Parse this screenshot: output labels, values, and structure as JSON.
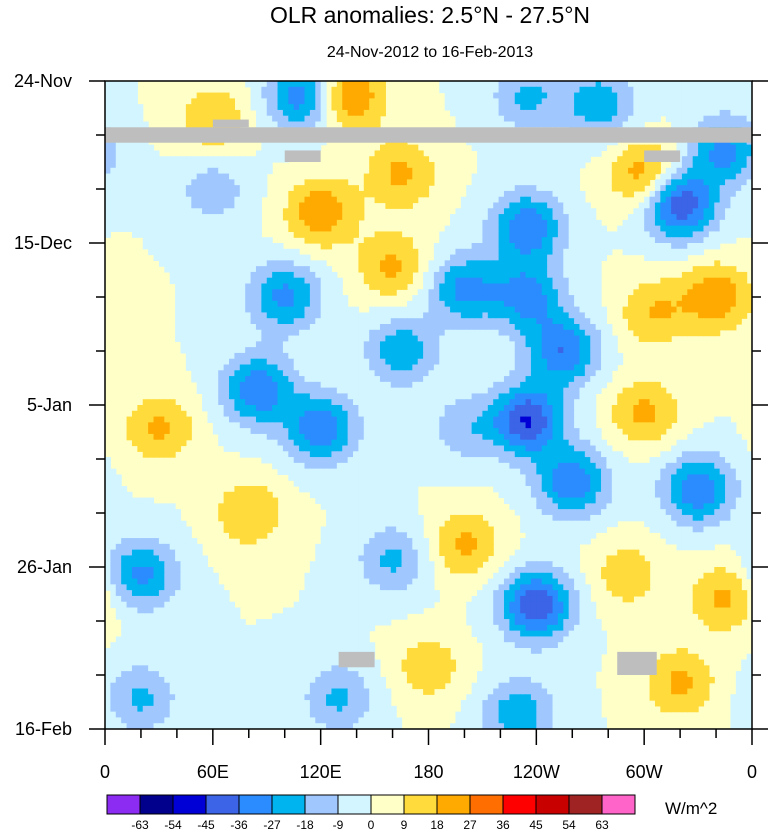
{
  "chart_data": {
    "type": "heatmap",
    "title": "OLR anomalies: 2.5°N - 27.5°N",
    "subtitle": "24-Nov-2012 to 16-Feb-2013",
    "x_tick_labels": [
      "0",
      "60E",
      "120E",
      "180",
      "120W",
      "60W",
      "0"
    ],
    "x_tick_values_deg_east": [
      0,
      60,
      120,
      180,
      240,
      300,
      360
    ],
    "xlim": [
      0,
      360
    ],
    "y_tick_labels": [
      "24-Nov",
      "15-Dec",
      "5-Jan",
      "26-Jan",
      "16-Feb"
    ],
    "y_tick_values_day": [
      0,
      21,
      42,
      63,
      84
    ],
    "ylim": [
      0,
      84
    ],
    "units_label": "W/m^2",
    "colorbar_levels": [
      "-63",
      "-54",
      "-45",
      "-36",
      "-27",
      "-18",
      "-9",
      "0",
      "9",
      "18",
      "27",
      "36",
      "45",
      "54",
      "63"
    ],
    "colorbar_colors": [
      "#8c2cf3",
      "#00008c",
      "#0000d6",
      "#3b64e6",
      "#2a8cff",
      "#00b4f0",
      "#a0c8ff",
      "#d2f5ff",
      "#ffffc8",
      "#ffdc3c",
      "#ffaa00",
      "#ff6e00",
      "#ff0000",
      "#c80000",
      "#a02323",
      "#ff64c8"
    ],
    "missing_color": "#bebebe",
    "missing_data_blocks": [
      {
        "lon": [
          0,
          360
        ],
        "day": [
          6,
          8
        ]
      },
      {
        "lon": [
          60,
          80
        ],
        "day": [
          5,
          6
        ]
      },
      {
        "lon": [
          100,
          120
        ],
        "day": [
          9,
          10.5
        ]
      },
      {
        "lon": [
          300,
          320
        ],
        "day": [
          9,
          10.5
        ]
      },
      {
        "lon": [
          130,
          150
        ],
        "day": [
          74,
          76
        ]
      },
      {
        "lon": [
          285,
          307
        ],
        "day": [
          74,
          77
        ]
      }
    ],
    "anomaly_features": [
      {
        "lon": 110,
        "day": 2,
        "value": -35
      },
      {
        "lon": 135,
        "day": 2,
        "value": 30
      },
      {
        "lon": 235,
        "day": 2,
        "value": -20
      },
      {
        "lon": 275,
        "day": 3,
        "value": -25
      },
      {
        "lon": 60,
        "day": 5,
        "value": 18
      },
      {
        "lon": 345,
        "day": 9,
        "value": -30
      },
      {
        "lon": 165,
        "day": 12,
        "value": 20
      },
      {
        "lon": 120,
        "day": 17,
        "value": 25
      },
      {
        "lon": 60,
        "day": 14,
        "value": -15
      },
      {
        "lon": 320,
        "day": 16,
        "value": -45
      },
      {
        "lon": 300,
        "day": 12,
        "value": 25
      },
      {
        "lon": 235,
        "day": 19,
        "value": -35
      },
      {
        "lon": 200,
        "day": 27,
        "value": -30
      },
      {
        "lon": 235,
        "day": 28,
        "value": -30
      },
      {
        "lon": 100,
        "day": 28,
        "value": -30
      },
      {
        "lon": 255,
        "day": 35,
        "value": -35
      },
      {
        "lon": 160,
        "day": 24,
        "value": 20
      },
      {
        "lon": 165,
        "day": 35,
        "value": -25
      },
      {
        "lon": 305,
        "day": 30,
        "value": 18
      },
      {
        "lon": 340,
        "day": 28,
        "value": 25
      },
      {
        "lon": 85,
        "day": 40,
        "value": -35
      },
      {
        "lon": 120,
        "day": 45,
        "value": -35
      },
      {
        "lon": 235,
        "day": 44,
        "value": -45
      },
      {
        "lon": 300,
        "day": 43,
        "value": 20
      },
      {
        "lon": 200,
        "day": 45,
        "value": -15
      },
      {
        "lon": 260,
        "day": 52,
        "value": -35
      },
      {
        "lon": 330,
        "day": 53,
        "value": -35
      },
      {
        "lon": 30,
        "day": 45,
        "value": 20
      },
      {
        "lon": 20,
        "day": 64,
        "value": -30
      },
      {
        "lon": 240,
        "day": 68,
        "value": -45
      },
      {
        "lon": 160,
        "day": 62,
        "value": -20
      },
      {
        "lon": 200,
        "day": 60,
        "value": 20
      },
      {
        "lon": 345,
        "day": 67,
        "value": 20
      },
      {
        "lon": 290,
        "day": 64,
        "value": 15
      },
      {
        "lon": 80,
        "day": 56,
        "value": 18
      },
      {
        "lon": 130,
        "day": 80,
        "value": -20
      },
      {
        "lon": 230,
        "day": 82,
        "value": -25
      },
      {
        "lon": 20,
        "day": 80,
        "value": -20
      },
      {
        "lon": 320,
        "day": 78,
        "value": 20
      },
      {
        "lon": 180,
        "day": 76,
        "value": 15
      }
    ]
  }
}
